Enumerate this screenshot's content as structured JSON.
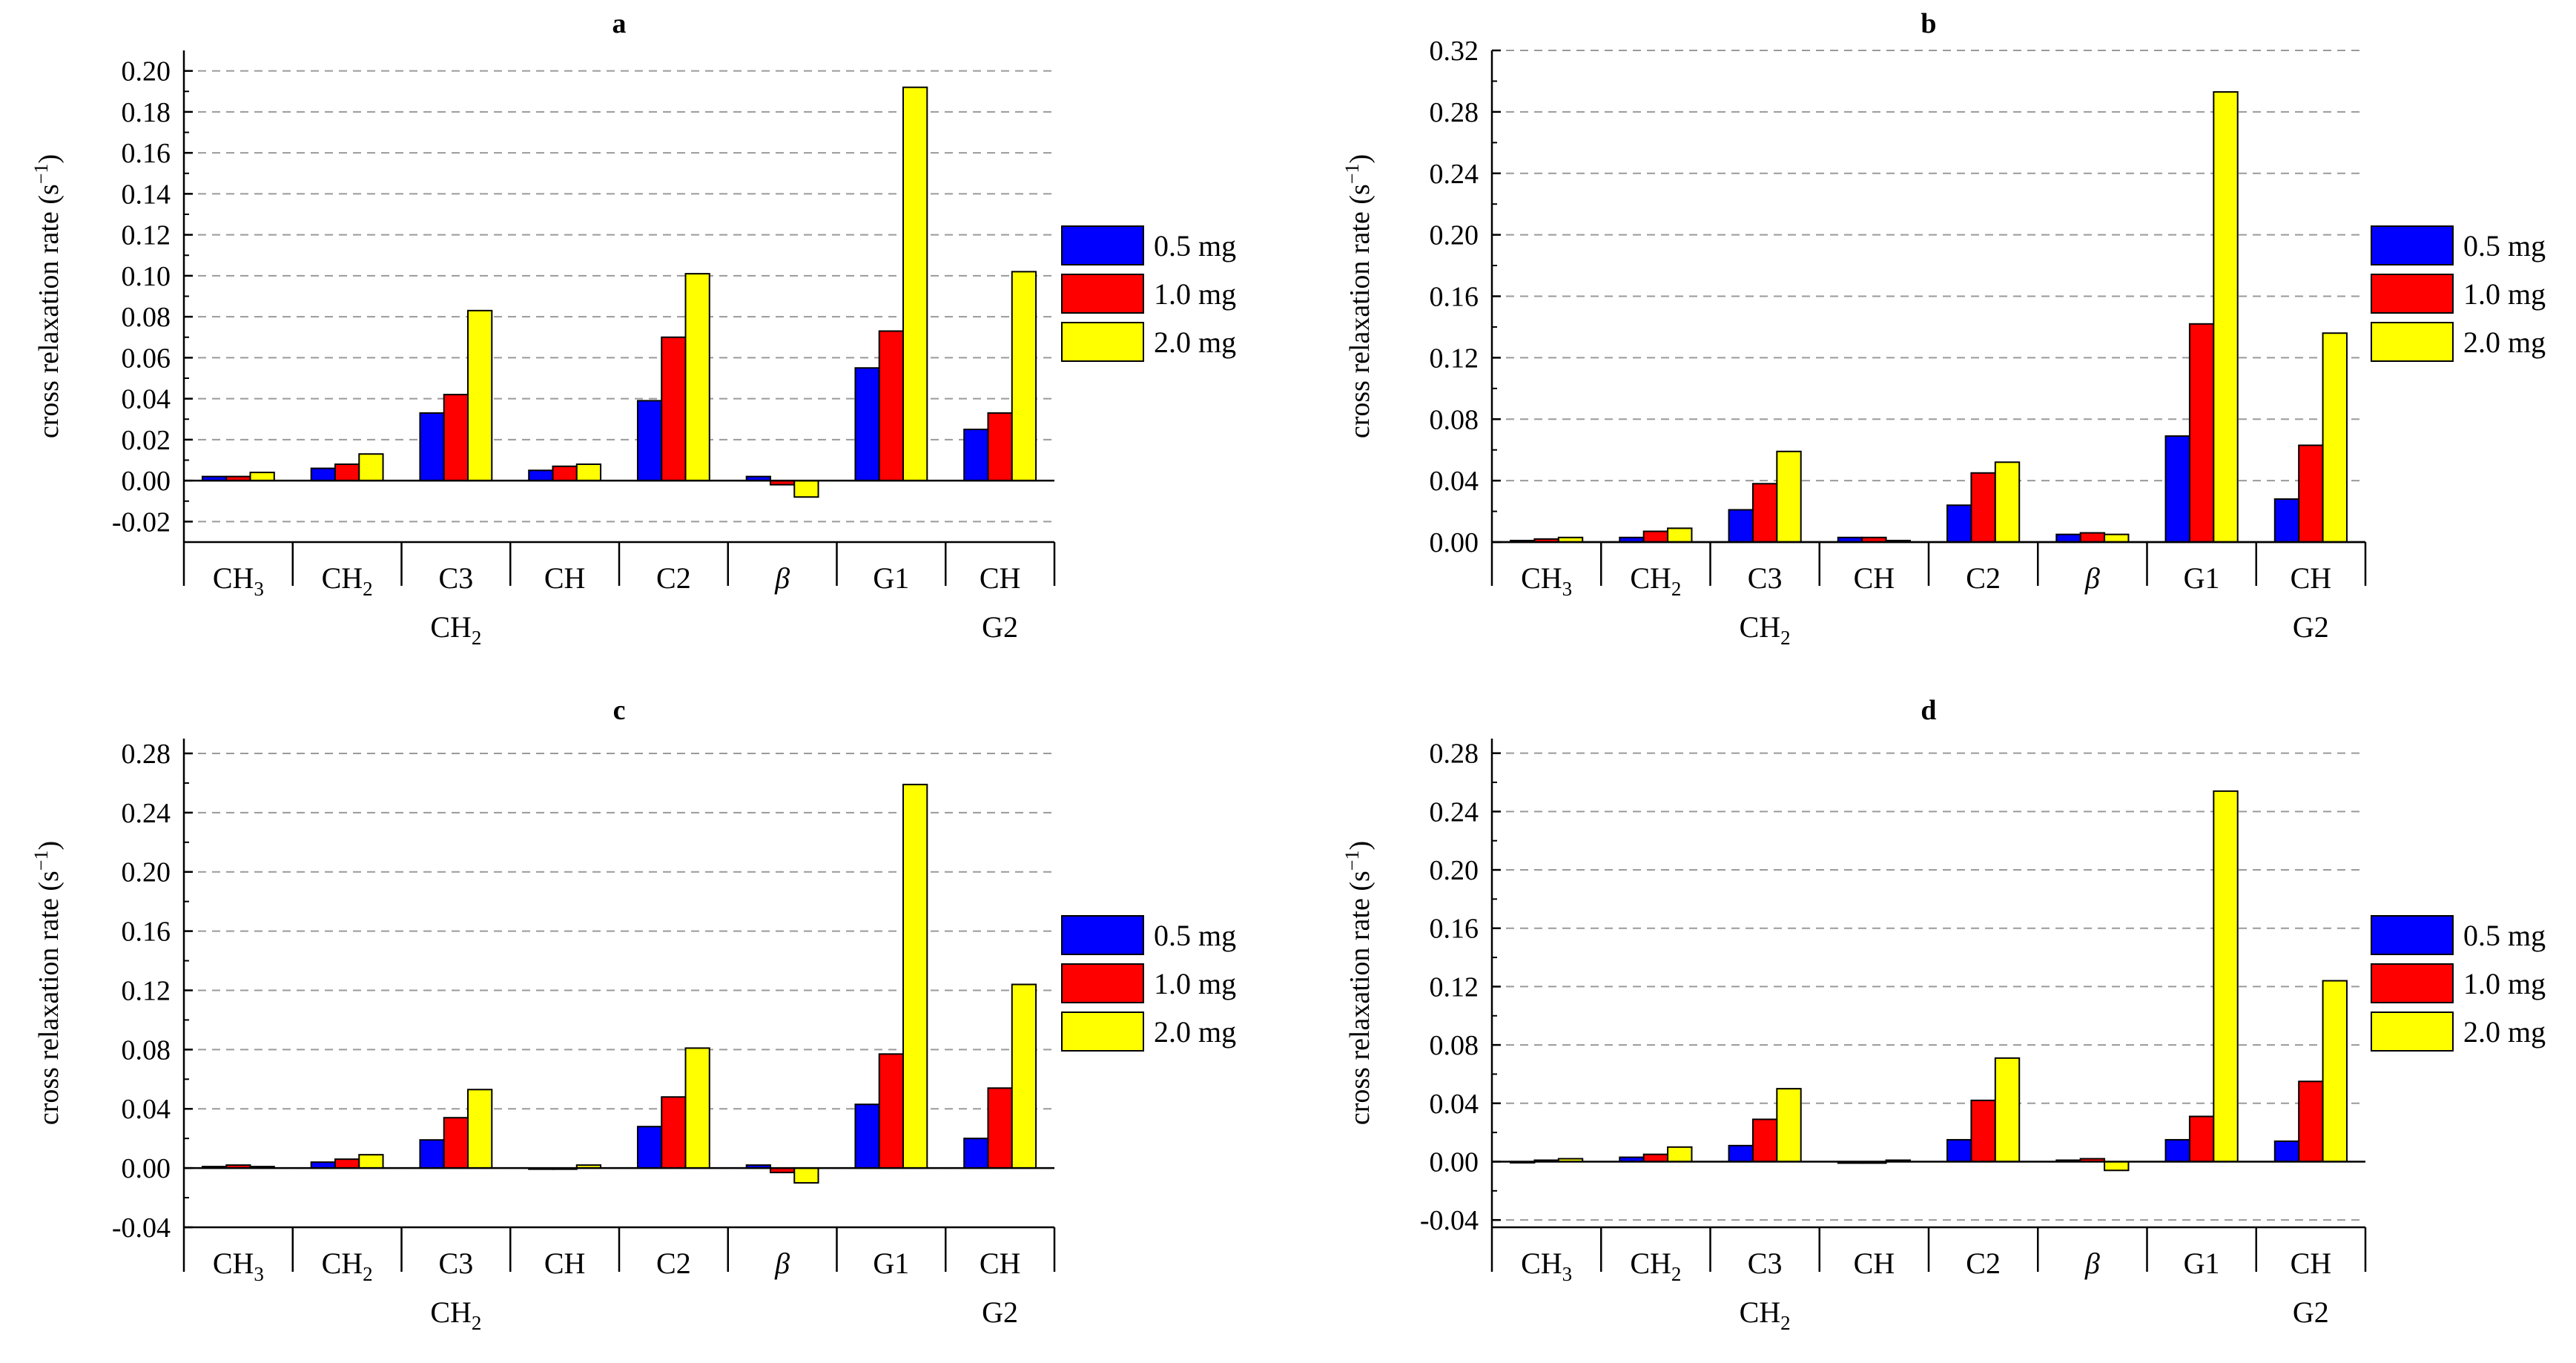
{
  "legend_labels": [
    "0.5 mg",
    "1.0 mg",
    "2.0 mg"
  ],
  "colors": {
    "0.5 mg": "#0000ff",
    "1.0 mg": "#ff0000",
    "2.0 mg": "#ffff00"
  },
  "ylabel": {
    "main": "cross relaxation rate (s",
    "sup": "−1",
    "close": ")"
  },
  "category_labels": [
    {
      "main": "CH",
      "sub": "3",
      "second": ""
    },
    {
      "main": "CH",
      "sub": "2",
      "second": ""
    },
    {
      "main": "C3",
      "sub": "",
      "second": "CH",
      "second_sub": "2"
    },
    {
      "main": "CH",
      "sub": "",
      "second": ""
    },
    {
      "main": "C2",
      "sub": "",
      "second": ""
    },
    {
      "main": "β",
      "sub": "",
      "second": "",
      "italic": true
    },
    {
      "main": "G1",
      "sub": "",
      "second": ""
    },
    {
      "main": "CH",
      "sub": "",
      "second": "G2"
    }
  ],
  "chart_data": [
    {
      "type": "bar",
      "title": "a",
      "ylim": [
        -0.03,
        0.21
      ],
      "yticks": [
        "-0.02",
        "0.00",
        "0.02",
        "0.04",
        "0.06",
        "0.08",
        "0.10",
        "0.12",
        "0.14",
        "0.16",
        "0.18",
        "0.20"
      ],
      "grid": true,
      "legend": "right",
      "categories": [
        "CH3",
        "CH2",
        "C3",
        "CH",
        "C2",
        "β",
        "G1",
        "CH"
      ],
      "series": [
        {
          "name": "0.5 mg",
          "values": [
            0.002,
            0.006,
            0.033,
            0.005,
            0.039,
            0.002,
            0.055,
            0.025
          ]
        },
        {
          "name": "1.0 mg",
          "values": [
            0.002,
            0.008,
            0.042,
            0.007,
            0.07,
            -0.002,
            0.073,
            0.033
          ]
        },
        {
          "name": "2.0 mg",
          "values": [
            0.004,
            0.013,
            0.083,
            0.008,
            0.101,
            -0.008,
            0.192,
            0.102
          ]
        }
      ]
    },
    {
      "type": "bar",
      "title": "b",
      "ylim": [
        0.0,
        0.32
      ],
      "yticks": [
        "0.00",
        "0.04",
        "0.08",
        "0.12",
        "0.16",
        "0.20",
        "0.24",
        "0.28",
        "0.32"
      ],
      "grid": true,
      "legend": "right",
      "categories": [
        "CH3",
        "CH2",
        "C3",
        "CH",
        "C2",
        "β",
        "G1",
        "CH"
      ],
      "series": [
        {
          "name": "0.5 mg",
          "values": [
            0.001,
            0.003,
            0.021,
            0.003,
            0.024,
            0.005,
            0.069,
            0.028
          ]
        },
        {
          "name": "1.0 mg",
          "values": [
            0.002,
            0.007,
            0.038,
            0.003,
            0.045,
            0.006,
            0.142,
            0.063
          ]
        },
        {
          "name": "2.0 mg",
          "values": [
            0.003,
            0.009,
            0.059,
            0.001,
            0.052,
            0.005,
            0.293,
            0.136
          ]
        }
      ]
    },
    {
      "type": "bar",
      "title": "c",
      "ylim": [
        -0.04,
        0.29
      ],
      "yticks": [
        "-0.04",
        "0.00",
        "0.04",
        "0.08",
        "0.12",
        "0.16",
        "0.20",
        "0.24",
        "0.28"
      ],
      "grid": true,
      "legend": "right",
      "categories": [
        "CH3",
        "CH2",
        "C3",
        "CH",
        "C2",
        "β",
        "G1",
        "CH"
      ],
      "series": [
        {
          "name": "0.5 mg",
          "values": [
            0.001,
            0.004,
            0.019,
            0.0,
            0.028,
            0.002,
            0.043,
            0.02
          ]
        },
        {
          "name": "1.0 mg",
          "values": [
            0.002,
            0.006,
            0.034,
            0.0,
            0.048,
            -0.003,
            0.077,
            0.054
          ]
        },
        {
          "name": "2.0 mg",
          "values": [
            0.001,
            0.009,
            0.053,
            0.002,
            0.081,
            -0.01,
            0.259,
            0.124
          ]
        }
      ]
    },
    {
      "type": "bar",
      "title": "d",
      "ylim": [
        -0.045,
        0.29
      ],
      "yticks": [
        "-0.04",
        "0.00",
        "0.04",
        "0.08",
        "0.12",
        "0.16",
        "0.20",
        "0.24",
        "0.28"
      ],
      "grid": true,
      "legend": "right",
      "categories": [
        "CH3",
        "CH2",
        "C3",
        "CH",
        "C2",
        "β",
        "G1",
        "CH"
      ],
      "series": [
        {
          "name": "0.5 mg",
          "values": [
            0.0,
            0.003,
            0.011,
            -0.001,
            0.015,
            0.001,
            0.015,
            0.014
          ]
        },
        {
          "name": "1.0 mg",
          "values": [
            0.001,
            0.005,
            0.029,
            -0.001,
            0.042,
            0.002,
            0.031,
            0.055
          ]
        },
        {
          "name": "2.0 mg",
          "values": [
            0.002,
            0.01,
            0.05,
            0.001,
            0.071,
            -0.006,
            0.254,
            0.124
          ]
        }
      ]
    }
  ]
}
